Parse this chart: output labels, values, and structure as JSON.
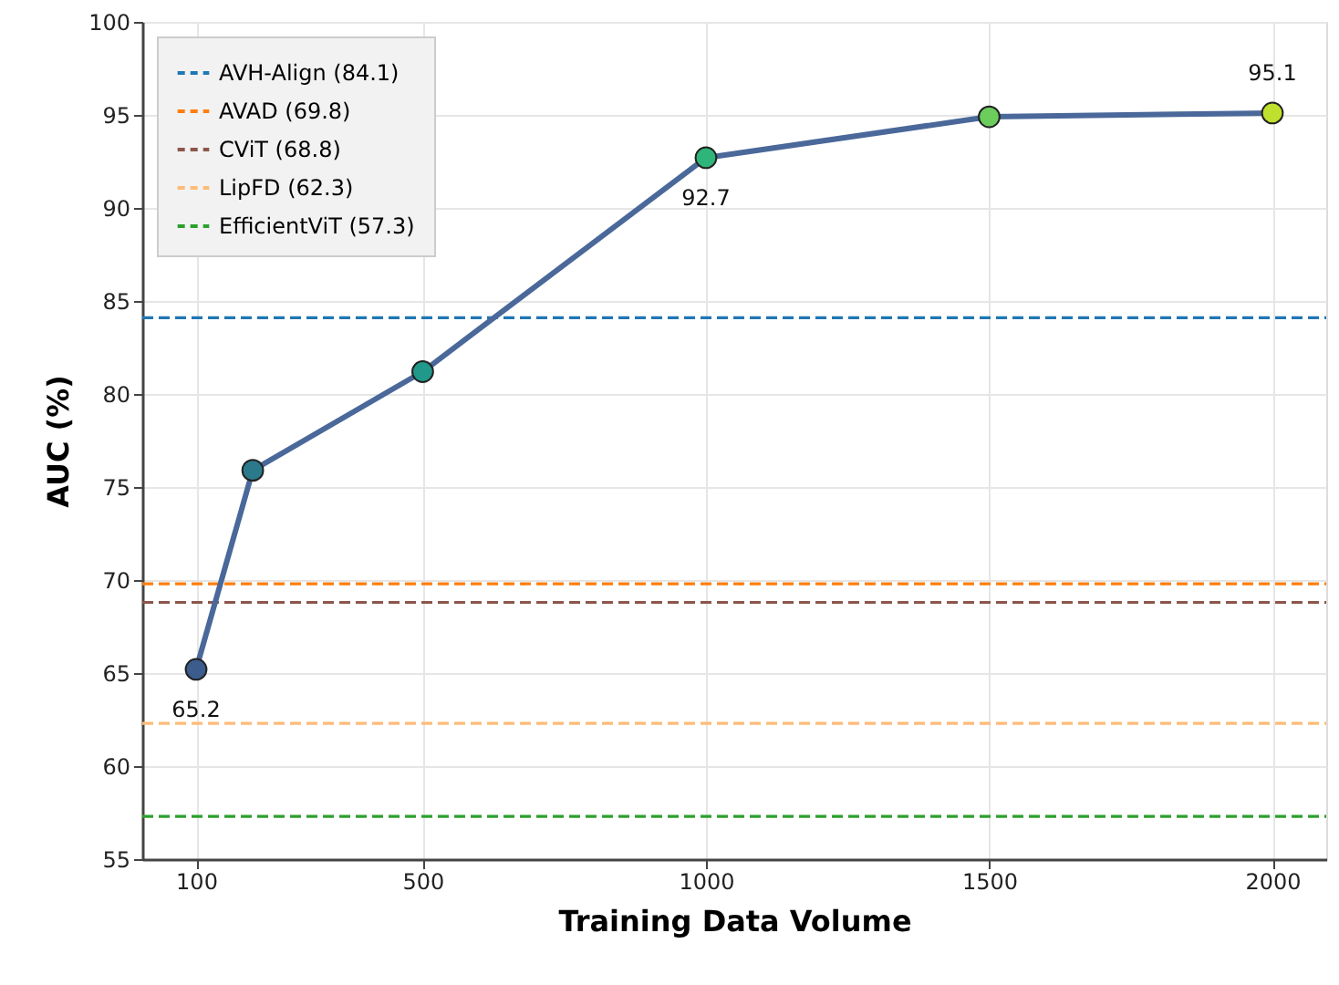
{
  "chart_data": {
    "type": "line",
    "xlabel": "Training Data Volume",
    "ylabel": "AUC (%)",
    "x": [
      100,
      200,
      500,
      1000,
      1500,
      2000
    ],
    "series": [
      {
        "color": "#4a6899",
        "colors": [
          "#3b5c8c",
          "#2b7a8c",
          "#21998a",
          "#2fb57a",
          "#6ccc5c",
          "#bfe02c"
        ],
        "values": [
          65.2,
          75.9,
          81.2,
          92.7,
          94.9,
          95.1
        ],
        "value_labels": [
          "65.2",
          null,
          null,
          "92.7",
          null,
          "95.1"
        ]
      }
    ],
    "xlim": [
      5,
      2095
    ],
    "xticks": [
      100,
      500,
      1000,
      1500,
      2000
    ],
    "ylim": [
      55,
      100
    ],
    "yticks": [
      55,
      60,
      65,
      70,
      75,
      80,
      85,
      90,
      95,
      100
    ],
    "grid": true,
    "marker": "circle",
    "line_style": "solid",
    "legend": "top left",
    "ref_lines": [
      {
        "axis": "y",
        "value": 84.1,
        "label": "AVH-Align (84.1)",
        "color": "#1f77b4",
        "line_style": "dashed"
      },
      {
        "axis": "y",
        "value": 69.8,
        "label": "AVAD (69.8)",
        "color": "#ff7f0e",
        "line_style": "dashed"
      },
      {
        "axis": "y",
        "value": 68.8,
        "label": "CViT (68.8)",
        "color": "#8c564b",
        "line_style": "dashed"
      },
      {
        "axis": "y",
        "value": 62.3,
        "label": "LipFD (62.3)",
        "color": "#ffbb78",
        "line_style": "dashed"
      },
      {
        "axis": "y",
        "value": 57.3,
        "label": "EfficientViT (57.3)",
        "color": "#2ca02c",
        "line_style": "dashed"
      }
    ]
  }
}
